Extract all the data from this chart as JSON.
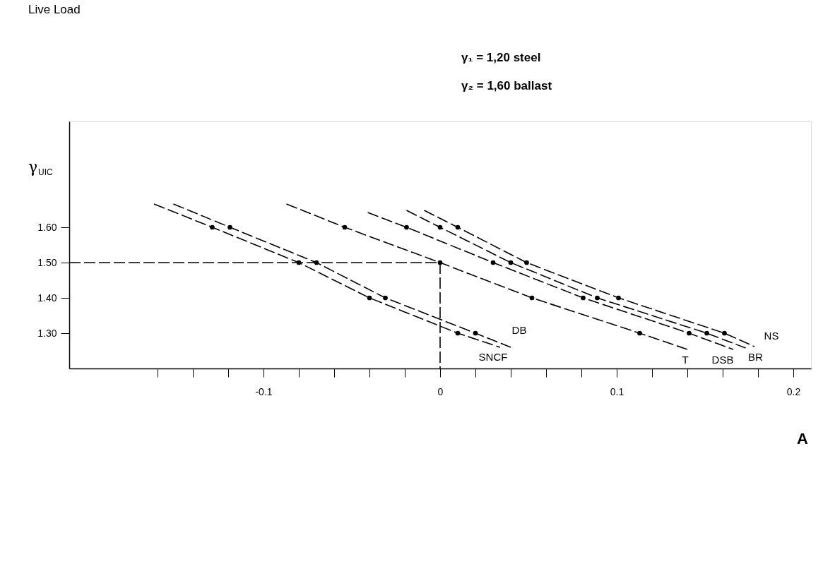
{
  "chart_data": {
    "type": "line",
    "title": "Live Load",
    "ylabel": "γ$_{UIC}$",
    "xlabel": "A",
    "annotations": [
      "γ₁ = 1,20  steel",
      "γ₂ = 1,60  ballast"
    ],
    "xlim": [
      -0.21,
      0.21
    ],
    "ylim": [
      1.2,
      1.9
    ],
    "xticks": [
      {
        "value": -0.16,
        "label": null
      },
      {
        "value": -0.14,
        "label": null
      },
      {
        "value": -0.12,
        "label": null
      },
      -0.1,
      {
        "value": -0.08,
        "label": null
      },
      {
        "value": -0.06,
        "label": null
      },
      {
        "value": -0.04,
        "label": null
      },
      {
        "value": -0.02,
        "label": null
      },
      0,
      {
        "value": 0.02,
        "label": null
      },
      {
        "value": 0.04,
        "label": null
      },
      {
        "value": 0.06,
        "label": null
      },
      {
        "value": 0.08,
        "label": null
      },
      0.1,
      {
        "value": 0.12,
        "label": null
      },
      {
        "value": 0.14,
        "label": null
      },
      {
        "value": 0.16,
        "label": null
      },
      {
        "value": 0.18,
        "label": null
      },
      0.2
    ],
    "yticks": [
      {
        "value": 1.3,
        "label": "1.30"
      },
      {
        "value": 1.4,
        "label": "1.40"
      },
      {
        "value": 1.5,
        "label": "1.50"
      },
      {
        "value": 1.6,
        "label": "1.60"
      }
    ],
    "grid": false,
    "legend": false,
    "line_style": "dashed",
    "marker": "none",
    "series": [
      {
        "name": "SNCF",
        "color": "#000000",
        "x": [
          -0.162,
          -0.129,
          -0.08,
          -0.04,
          0.01,
          0.034
        ],
        "values": [
          1.666,
          1.6,
          1.5,
          1.4,
          1.3,
          1.26
        ]
      },
      {
        "name": "DB",
        "color": "#000000",
        "x": [
          -0.151,
          -0.119,
          -0.07,
          -0.031,
          0.02,
          0.04
        ],
        "values": [
          1.666,
          1.6,
          1.5,
          1.4,
          1.3,
          1.26
        ]
      },
      {
        "name": "T",
        "color": "#000000",
        "x": [
          -0.087,
          -0.054,
          0.0,
          0.052,
          0.113,
          0.14
        ],
        "values": [
          1.666,
          1.6,
          1.5,
          1.4,
          1.3,
          1.254
        ]
      },
      {
        "name": "DSB",
        "color": "#000000",
        "x": [
          -0.041,
          -0.019,
          0.03,
          0.081,
          0.141,
          0.166
        ],
        "values": [
          1.642,
          1.6,
          1.5,
          1.4,
          1.3,
          1.254
        ]
      },
      {
        "name": "BR",
        "color": "#000000",
        "x": [
          -0.019,
          0.0,
          0.04,
          0.089,
          0.151,
          0.173
        ],
        "values": [
          1.648,
          1.6,
          1.5,
          1.4,
          1.3,
          1.258
        ]
      },
      {
        "name": "NS",
        "color": "#000000",
        "x": [
          -0.009,
          0.01,
          0.049,
          0.101,
          0.161,
          0.178
        ],
        "values": [
          1.648,
          1.6,
          1.5,
          1.4,
          1.3,
          1.262
        ]
      },
      {
        "type": "scatter",
        "marker": "circle",
        "color": "#000000",
        "x": [
          -0.129,
          -0.08,
          -0.04,
          0.01,
          -0.119,
          -0.07,
          -0.031,
          0.02,
          -0.054,
          0.0,
          0.052,
          0.113,
          -0.019,
          0.03,
          0.081,
          0.141,
          0.0,
          0.04,
          0.089,
          0.151,
          0.01,
          0.049,
          0.101,
          0.161
        ],
        "values": [
          1.6,
          1.5,
          1.4,
          1.3,
          1.6,
          1.5,
          1.4,
          1.3,
          1.6,
          1.5,
          1.4,
          1.3,
          1.6,
          1.5,
          1.4,
          1.3,
          1.6,
          1.5,
          1.4,
          1.3,
          1.6,
          1.5,
          1.4,
          1.3
        ]
      },
      {
        "color": "#000000",
        "x": [
          -0.21,
          0.0,
          0.0
        ],
        "values": [
          1.5,
          1.5,
          1.2
        ]
      }
    ]
  }
}
